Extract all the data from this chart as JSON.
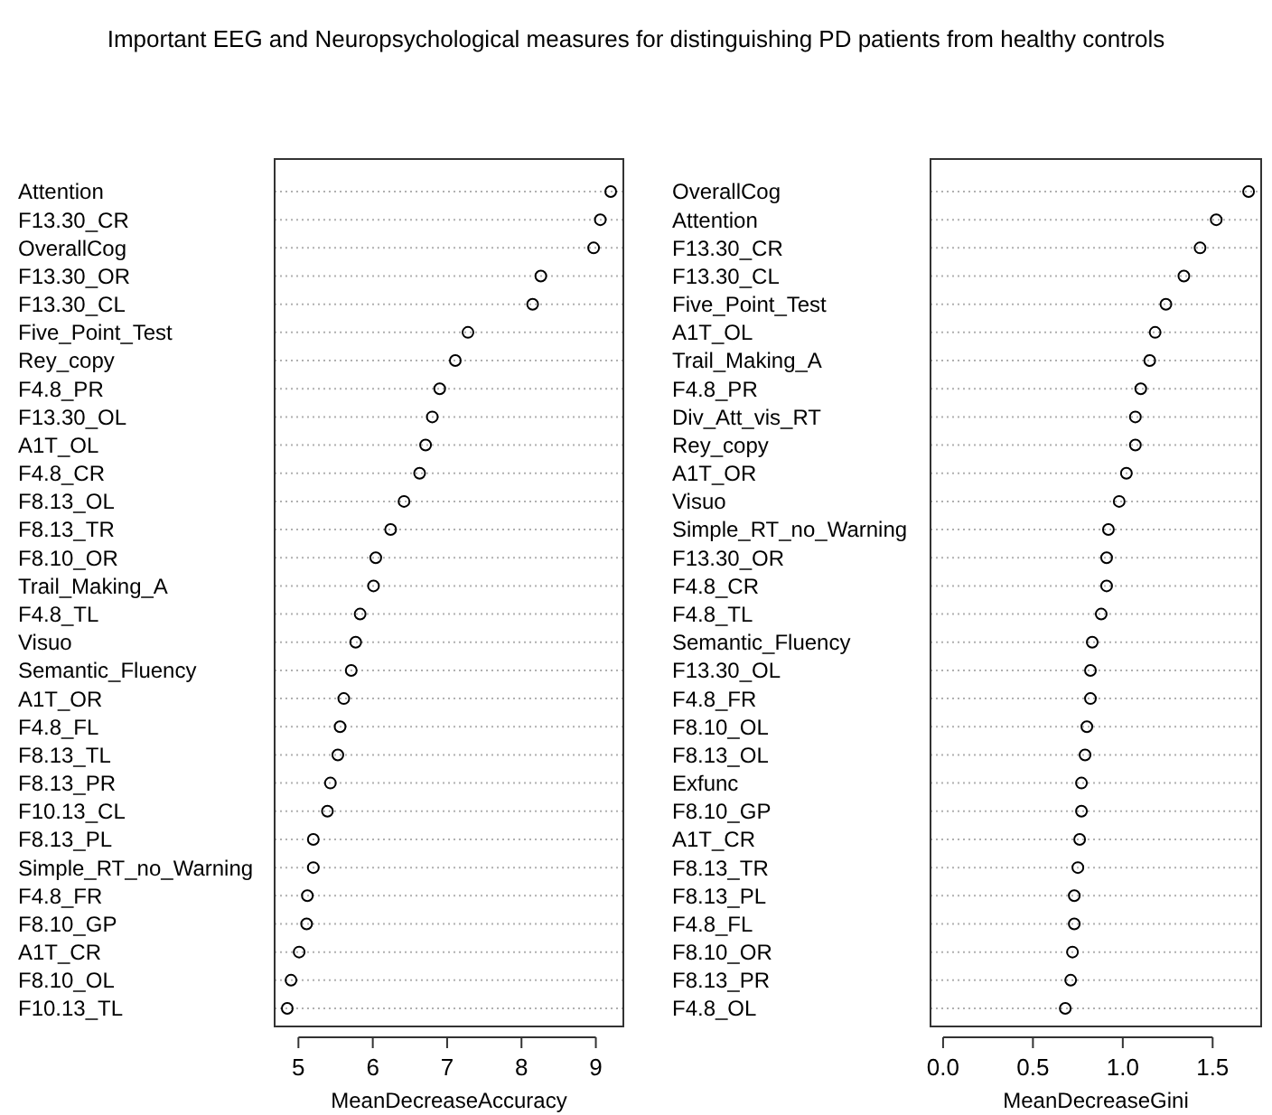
{
  "chart_data": [
    {
      "type": "scatter",
      "orientation": "horizontal",
      "title": "Important EEG and Neuropsychological measures for distinguishing PD patients from healthy controls",
      "xlabel": "MeanDecreaseAccuracy",
      "marker": "circle",
      "grid": "y",
      "color": "#000000",
      "categories": [
        "Attention",
        "F13.30_CR",
        "OverallCog",
        "F13.30_OR",
        "F13.30_CL",
        "Five_Point_Test",
        "Rey_copy",
        "F4.8_PR",
        "F13.30_OL",
        "A1T_OL",
        "F4.8_CR",
        "F8.13_OL",
        "F8.13_TR",
        "F8.10_OR",
        "Trail_Making_A",
        "F4.8_TL",
        "Visuo",
        "Semantic_Fluency",
        "A1T_OR",
        "F4.8_FL",
        "F8.13_TL",
        "F8.13_PR",
        "F10.13_CL",
        "F8.13_PL",
        "Simple_RT_no_Warning",
        "F4.8_FR",
        "F8.10_GP",
        "A1T_CR",
        "F8.10_OL",
        "F10.13_TL"
      ],
      "values": [
        9.2,
        9.06,
        8.97,
        8.26,
        8.15,
        7.28,
        7.11,
        6.9,
        6.8,
        6.71,
        6.63,
        6.42,
        6.24,
        6.04,
        6.01,
        5.83,
        5.77,
        5.71,
        5.61,
        5.56,
        5.53,
        5.43,
        5.39,
        5.2,
        5.2,
        5.12,
        5.11,
        5.01,
        4.9,
        4.85
      ],
      "xlim": [
        4.68,
        9.37
      ],
      "xticks": [
        5,
        6,
        7,
        8,
        9
      ]
    },
    {
      "type": "scatter",
      "orientation": "horizontal",
      "xlabel": "MeanDecreaseGini",
      "marker": "circle",
      "grid": "y",
      "color": "#000000",
      "categories": [
        "OverallCog",
        "Attention",
        "F13.30_CR",
        "F13.30_CL",
        "Five_Point_Test",
        "A1T_OL",
        "Trail_Making_A",
        "F4.8_PR",
        "Div_Att_vis_RT",
        "Rey_copy",
        "A1T_OR",
        "Visuo",
        "Simple_RT_no_Warning",
        "F13.30_OR",
        "F4.8_CR",
        "F4.8_TL",
        "Semantic_Fluency",
        "F13.30_OL",
        "F4.8_FR",
        "F8.10_OL",
        "F8.13_OL",
        "Exfunc",
        "F8.10_GP",
        "A1T_CR",
        "F8.13_TR",
        "F8.13_PL",
        "F4.8_FL",
        "F8.10_OR",
        "F8.13_PR",
        "F4.8_OL"
      ],
      "values": [
        1.7,
        1.52,
        1.43,
        1.34,
        1.24,
        1.18,
        1.15,
        1.1,
        1.07,
        1.07,
        1.02,
        0.98,
        0.92,
        0.91,
        0.91,
        0.88,
        0.83,
        0.82,
        0.82,
        0.8,
        0.79,
        0.77,
        0.77,
        0.76,
        0.75,
        0.73,
        0.73,
        0.72,
        0.71,
        0.68
      ],
      "xlim": [
        -0.07,
        1.77
      ],
      "xticks": [
        {
          "value": 0,
          "label": "0.0"
        },
        {
          "value": 0.5,
          "label": "0.5"
        },
        {
          "value": 1,
          "label": "1.0"
        },
        {
          "value": 1.5,
          "label": "1.5"
        }
      ]
    }
  ]
}
